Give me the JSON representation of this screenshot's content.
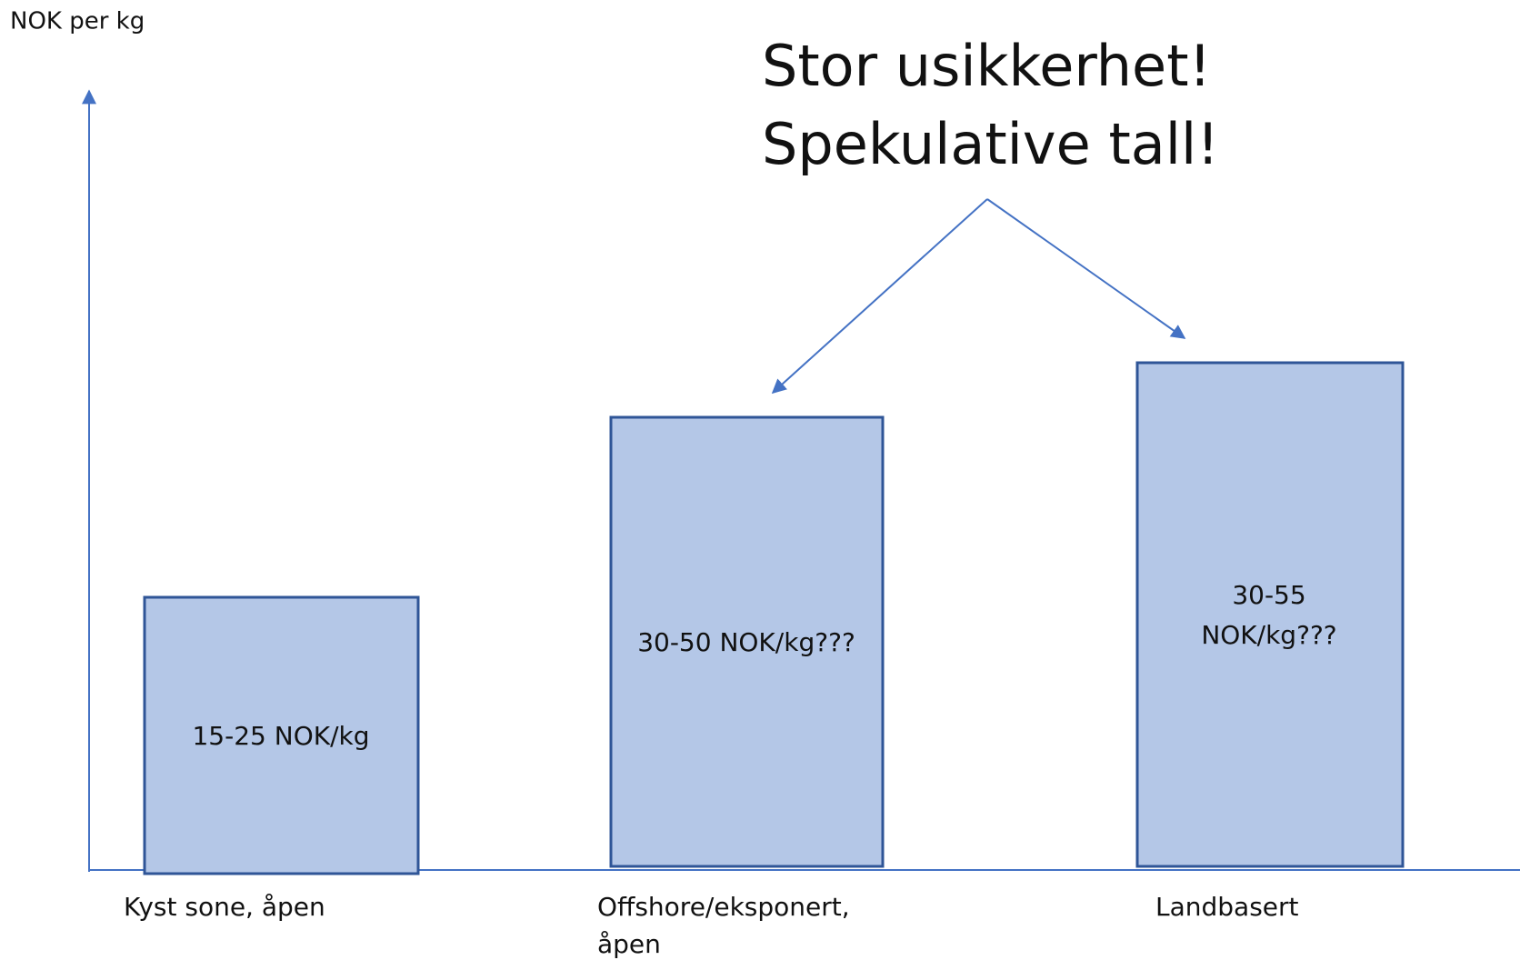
{
  "axis_label": "NOK per kg",
  "callout": [
    "Stor usikkerhet!",
    "Spekulative tall!"
  ],
  "bars": [
    {
      "label": [
        "15-25 NOK/kg"
      ],
      "category": [
        "Kyst sone, åpen"
      ]
    },
    {
      "label": [
        "30-50 NOK/kg???"
      ],
      "category": [
        "Offshore/eksponert,",
        "åpen"
      ]
    },
    {
      "label": [
        "30-55",
        "NOK/kg???"
      ],
      "category": [
        "Landbasert"
      ]
    }
  ]
}
